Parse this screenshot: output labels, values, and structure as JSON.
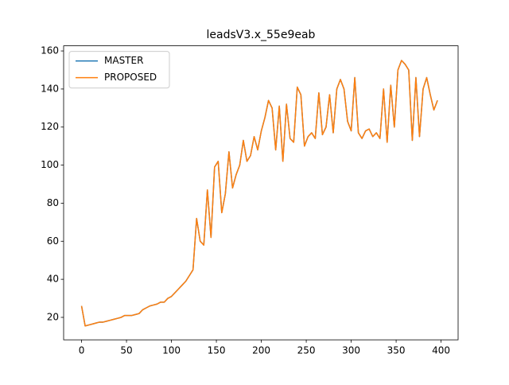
{
  "chart_data": {
    "type": "line",
    "title": "leadsV3.x_55e9eab",
    "x": [
      0,
      4,
      8,
      12,
      16,
      20,
      24,
      28,
      32,
      36,
      40,
      44,
      48,
      52,
      56,
      60,
      64,
      68,
      72,
      76,
      80,
      84,
      88,
      92,
      96,
      100,
      104,
      108,
      112,
      116,
      120,
      124,
      128,
      132,
      136,
      140,
      144,
      148,
      152,
      156,
      160,
      164,
      168,
      172,
      176,
      180,
      184,
      188,
      192,
      196,
      200,
      204,
      208,
      212,
      216,
      220,
      224,
      228,
      232,
      236,
      240,
      244,
      248,
      252,
      256,
      260,
      264,
      268,
      272,
      276,
      280,
      284,
      288,
      292,
      296,
      300,
      304,
      308,
      312,
      316,
      320,
      324,
      328,
      332,
      336,
      340,
      344,
      348,
      352,
      356,
      360,
      364,
      368,
      372,
      376,
      380,
      384,
      388,
      392,
      396
    ],
    "series": [
      {
        "name": "MASTER",
        "color": "#1f77b4",
        "values": [
          26,
          15.5,
          16,
          16.5,
          17,
          17.5,
          17.5,
          18,
          18.5,
          19,
          19.5,
          20,
          21,
          21,
          21,
          21.5,
          22,
          24,
          25,
          26,
          26.5,
          27,
          28,
          28,
          30,
          31,
          33,
          35,
          37,
          39,
          42,
          45,
          72,
          60,
          58,
          87,
          62,
          99,
          102,
          75,
          85,
          107,
          88,
          95,
          100,
          113,
          102,
          105,
          115,
          108,
          118,
          125,
          134,
          130,
          108,
          131,
          102,
          132,
          114,
          112,
          141,
          137,
          110,
          115,
          117,
          114,
          138,
          116,
          120,
          137,
          117,
          140,
          145,
          140,
          123,
          118,
          146,
          117,
          114,
          118,
          119,
          115,
          117,
          114,
          140,
          112,
          142,
          120,
          150,
          155,
          153,
          150,
          113,
          146,
          115,
          140,
          146,
          137,
          129,
          134
        ]
      },
      {
        "name": "PROPOSED",
        "color": "#ff7f0e",
        "values": [
          26,
          15.5,
          16,
          16.5,
          17,
          17.5,
          17.5,
          18,
          18.5,
          19,
          19.5,
          20,
          21,
          21,
          21,
          21.5,
          22,
          24,
          25,
          26,
          26.5,
          27,
          28,
          28,
          30,
          31,
          33,
          35,
          37,
          39,
          42,
          45,
          72,
          60,
          58,
          87,
          62,
          99,
          102,
          75,
          85,
          107,
          88,
          95,
          100,
          113,
          102,
          105,
          115,
          108,
          118,
          125,
          134,
          130,
          108,
          131,
          102,
          132,
          114,
          112,
          141,
          137,
          110,
          115,
          117,
          114,
          138,
          116,
          120,
          137,
          117,
          140,
          145,
          140,
          123,
          118,
          146,
          117,
          114,
          118,
          119,
          115,
          117,
          114,
          140,
          112,
          142,
          120,
          150,
          155,
          153,
          150,
          113,
          146,
          115,
          140,
          146,
          137,
          129,
          134
        ]
      }
    ],
    "xlim": [
      -19.95,
      418.95
    ],
    "xticks": [
      0,
      50,
      100,
      150,
      200,
      250,
      300,
      350,
      400
    ],
    "ylim": [
      8.2,
      162.7
    ],
    "yticks": [
      20,
      40,
      60,
      80,
      100,
      120,
      140,
      160
    ],
    "legend": "upper left"
  }
}
